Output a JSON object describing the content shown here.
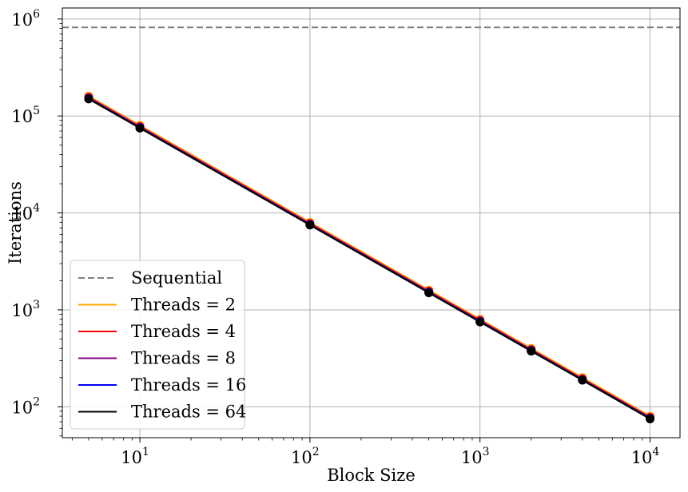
{
  "chart_data": {
    "type": "line",
    "xlabel": "Block Size",
    "ylabel": "Iterations",
    "xscale": "log",
    "yscale": "log",
    "xlim": [
      3.5,
      15000
    ],
    "ylim": [
      48,
      1300000
    ],
    "grid": true,
    "legend_position": "lower-left",
    "x_ticks": [
      {
        "base": "10",
        "exp": "1",
        "value": 10
      },
      {
        "base": "10",
        "exp": "2",
        "value": 100
      },
      {
        "base": "10",
        "exp": "3",
        "value": 1000
      },
      {
        "base": "10",
        "exp": "4",
        "value": 10000
      }
    ],
    "y_ticks": [
      {
        "base": "10",
        "exp": "2",
        "value": 100
      },
      {
        "base": "10",
        "exp": "3",
        "value": 1000
      },
      {
        "base": "10",
        "exp": "4",
        "value": 10000
      },
      {
        "base": "10",
        "exp": "5",
        "value": 100000
      },
      {
        "base": "10",
        "exp": "6",
        "value": 1000000
      }
    ],
    "x": [
      5,
      10,
      100,
      500,
      1000,
      2000,
      4000,
      10000
    ],
    "series": [
      {
        "name": "Sequential",
        "style": "dashed",
        "color": "#808080",
        "constant": 820000
      },
      {
        "name": "Threads = 2",
        "style": "solid",
        "color": "#ffa500",
        "values": [
          160000,
          80000,
          8000,
          1600,
          800,
          400,
          200,
          80
        ]
      },
      {
        "name": "Threads = 4",
        "style": "solid",
        "color": "#ff0000",
        "values": [
          156000,
          78000,
          7800,
          1560,
          780,
          390,
          195,
          78
        ]
      },
      {
        "name": "Threads = 8",
        "style": "solid",
        "color": "#800080",
        "values": [
          153000,
          76500,
          7650,
          1530,
          765,
          383,
          191,
          76.5
        ]
      },
      {
        "name": "Threads = 16",
        "style": "solid",
        "color": "#0000ff",
        "values": [
          151000,
          75500,
          7550,
          1510,
          755,
          378,
          189,
          75.5
        ]
      },
      {
        "name": "Threads = 64",
        "style": "solid",
        "color": "#000000",
        "values": [
          150000,
          75000,
          7500,
          1500,
          750,
          375,
          188,
          75
        ]
      }
    ]
  }
}
